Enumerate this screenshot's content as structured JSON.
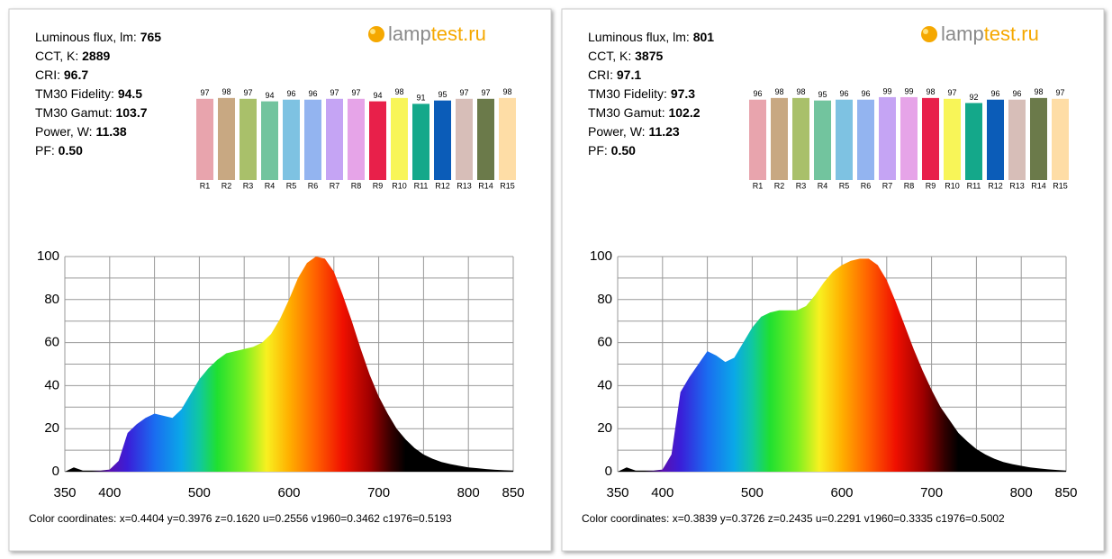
{
  "panels": [
    {
      "logo": [
        "lamp",
        "test.ru"
      ],
      "stats": [
        {
          "label": "Luminous flux, lm:",
          "value": "765"
        },
        {
          "label": "CCT, K:",
          "value": "2889"
        },
        {
          "label": "CRI:",
          "value": "96.7"
        },
        {
          "label": "TM30 Fidelity:",
          "value": "94.5"
        },
        {
          "label": "TM30 Gamut:",
          "value": "103.7"
        },
        {
          "label": "Power, W:",
          "value": "11.38"
        },
        {
          "label": "PF:",
          "value": "0.50"
        }
      ],
      "coordinates": "Color coordinates: x=0.4404 y=0.3976 z=0.1620 u=0.2556 v1960=0.3462 c1976=0.5193"
    },
    {
      "logo": [
        "lamp",
        "test.ru"
      ],
      "stats": [
        {
          "label": "Luminous flux, lm:",
          "value": "801"
        },
        {
          "label": "CCT, K:",
          "value": "3875"
        },
        {
          "label": "CRI:",
          "value": "97.1"
        },
        {
          "label": "TM30 Fidelity:",
          "value": "97.3"
        },
        {
          "label": "TM30 Gamut:",
          "value": "102.2"
        },
        {
          "label": "Power, W:",
          "value": "11.23"
        },
        {
          "label": "PF:",
          "value": "0.50"
        }
      ],
      "coordinates": "Color coordinates: x=0.3839 y=0.3726 z=0.2435 u=0.2291 v1960=0.3335 c1976=0.5002"
    }
  ],
  "chart_data": [
    {
      "type": "bar",
      "categories": [
        "R1",
        "R2",
        "R3",
        "R4",
        "R5",
        "R6",
        "R7",
        "R8",
        "R9",
        "R10",
        "R11",
        "R12",
        "R13",
        "R14",
        "R15"
      ],
      "values": [
        97,
        98,
        97,
        94,
        96,
        96,
        97,
        97,
        94,
        98,
        91,
        95,
        97,
        97,
        98
      ],
      "colors": [
        "#e8a4ad",
        "#c8a882",
        "#a9c06a",
        "#72c49e",
        "#7ec2e2",
        "#93b4f0",
        "#c5a4f4",
        "#e6a4e8",
        "#e8204a",
        "#f8f558",
        "#14a88a",
        "#0b5cb8",
        "#d7beb8",
        "#6b7a4a",
        "#fedda6"
      ],
      "ylim": [
        0,
        100
      ]
    },
    {
      "type": "area",
      "x": [
        350,
        360,
        370,
        380,
        390,
        400,
        410,
        420,
        430,
        440,
        450,
        460,
        470,
        480,
        490,
        500,
        510,
        520,
        530,
        540,
        550,
        560,
        570,
        580,
        590,
        600,
        610,
        620,
        630,
        640,
        650,
        660,
        670,
        680,
        690,
        700,
        710,
        720,
        730,
        740,
        750,
        760,
        770,
        780,
        790,
        800,
        810,
        820,
        830,
        840,
        850
      ],
      "values": [
        0,
        2,
        0.5,
        0.5,
        0.5,
        1,
        5,
        18,
        22,
        25,
        27,
        26,
        25,
        29,
        36,
        43,
        48,
        52,
        55,
        56,
        57,
        58,
        60,
        64,
        71,
        80,
        90,
        97,
        100,
        99,
        93,
        82,
        70,
        57,
        45,
        35,
        27,
        20,
        15,
        11,
        8,
        6,
        4.5,
        3.5,
        2.7,
        2,
        1.6,
        1.2,
        0.9,
        0.7,
        0.5
      ],
      "xlim": [
        350,
        850
      ],
      "ylim": [
        0,
        100
      ],
      "xticks": [
        350,
        400,
        500,
        600,
        700,
        800,
        850
      ],
      "yticks": [
        0,
        20,
        40,
        60,
        80,
        100
      ],
      "xgrid": [
        350,
        400,
        450,
        500,
        550,
        600,
        650,
        700,
        750,
        800,
        850
      ],
      "ygrid": [
        0,
        10,
        20,
        30,
        40,
        50,
        60,
        70,
        80,
        90,
        100
      ]
    },
    {
      "type": "bar",
      "categories": [
        "R1",
        "R2",
        "R3",
        "R4",
        "R5",
        "R6",
        "R7",
        "R8",
        "R9",
        "R10",
        "R11",
        "R12",
        "R13",
        "R14",
        "R15"
      ],
      "values": [
        96,
        98,
        98,
        95,
        96,
        96,
        99,
        99,
        98,
        97,
        92,
        96,
        96,
        98,
        97
      ],
      "colors": [
        "#e8a4ad",
        "#c8a882",
        "#a9c06a",
        "#72c49e",
        "#7ec2e2",
        "#93b4f0",
        "#c5a4f4",
        "#e6a4e8",
        "#e8204a",
        "#f8f558",
        "#14a88a",
        "#0b5cb8",
        "#d7beb8",
        "#6b7a4a",
        "#fedda6"
      ],
      "ylim": [
        0,
        100
      ]
    },
    {
      "type": "area",
      "x": [
        350,
        360,
        370,
        380,
        390,
        400,
        410,
        420,
        430,
        440,
        450,
        460,
        470,
        480,
        490,
        500,
        510,
        520,
        530,
        540,
        550,
        560,
        570,
        580,
        590,
        600,
        610,
        620,
        630,
        640,
        650,
        660,
        670,
        680,
        690,
        700,
        710,
        720,
        730,
        740,
        750,
        760,
        770,
        780,
        790,
        800,
        810,
        820,
        830,
        840,
        850
      ],
      "values": [
        0,
        2,
        0.5,
        0.5,
        0.5,
        1,
        8,
        37,
        44,
        50,
        56,
        54,
        51,
        53,
        60,
        67,
        72,
        74,
        75,
        75,
        75,
        77,
        82,
        88,
        93,
        96,
        98,
        99,
        99,
        96,
        89,
        79,
        68,
        57,
        47,
        38,
        30,
        24,
        18,
        14,
        10.5,
        8,
        6,
        4.5,
        3.5,
        2.7,
        2,
        1.5,
        1.1,
        0.8,
        0.5
      ],
      "xlim": [
        350,
        850
      ],
      "ylim": [
        0,
        100
      ],
      "xticks": [
        350,
        400,
        500,
        600,
        700,
        800,
        850
      ],
      "yticks": [
        0,
        20,
        40,
        60,
        80,
        100
      ],
      "xgrid": [
        350,
        400,
        450,
        500,
        550,
        600,
        650,
        700,
        750,
        800,
        850
      ],
      "ygrid": [
        0,
        10,
        20,
        30,
        40,
        50,
        60,
        70,
        80,
        90,
        100
      ]
    }
  ]
}
